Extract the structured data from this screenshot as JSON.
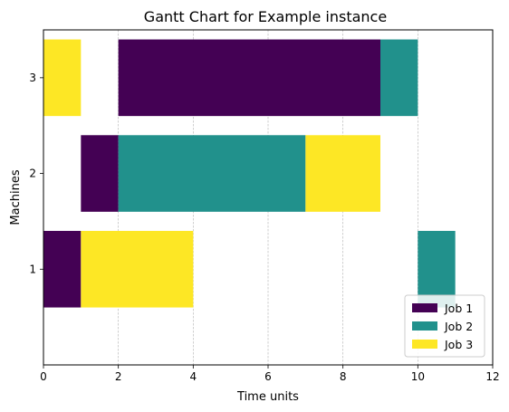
{
  "chart_data": {
    "type": "bar",
    "orientation": "horizontal",
    "title": "Gantt Chart for Example instance",
    "xlabel": "Time units",
    "ylabel": "Machines",
    "xlim": [
      0,
      12
    ],
    "xticks": [
      0,
      2,
      4,
      6,
      8,
      10,
      12
    ],
    "yticks": [
      1,
      2,
      3
    ],
    "grid": "vertical-dashed",
    "legend_position": "bottom-right",
    "series": [
      {
        "name": "Job 1",
        "color": "#440154",
        "tasks": [
          {
            "machine": 1,
            "start": 0,
            "end": 1
          },
          {
            "machine": 2,
            "start": 1,
            "end": 2
          },
          {
            "machine": 3,
            "start": 2,
            "end": 9
          }
        ]
      },
      {
        "name": "Job 2",
        "color": "#21918c",
        "tasks": [
          {
            "machine": 2,
            "start": 2,
            "end": 7
          },
          {
            "machine": 3,
            "start": 9,
            "end": 10
          },
          {
            "machine": 1,
            "start": 10,
            "end": 11
          }
        ]
      },
      {
        "name": "Job 3",
        "color": "#fde725",
        "tasks": [
          {
            "machine": 3,
            "start": 0,
            "end": 1
          },
          {
            "machine": 1,
            "start": 1,
            "end": 4
          },
          {
            "machine": 2,
            "start": 7,
            "end": 9
          }
        ]
      }
    ]
  }
}
